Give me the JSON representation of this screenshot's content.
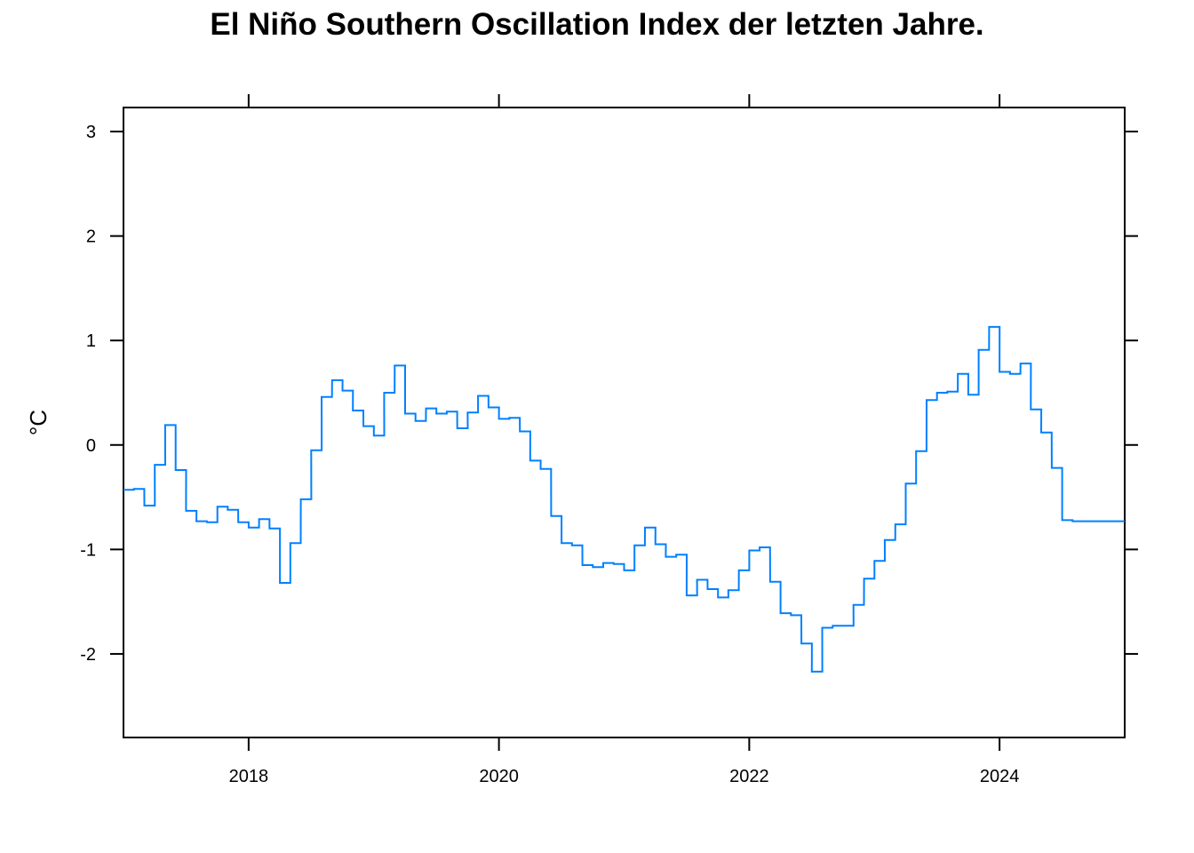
{
  "chart_data": {
    "type": "line",
    "step": true,
    "title": "El Niño Southern Oscillation Index der letzten Jahre.",
    "xlabel": "",
    "ylabel": "°C",
    "xlim": [
      2017.0,
      2025.0
    ],
    "ylim": [
      -2.8,
      3.23
    ],
    "x_ticks": [
      2018,
      2020,
      2022,
      2024
    ],
    "y_ticks": [
      3,
      2,
      1,
      0,
      -1,
      -2
    ],
    "grid": false,
    "line_color": "#0080ff",
    "series": [
      {
        "x": [
          2017.0,
          2017.083,
          2017.167,
          2017.25,
          2017.333,
          2017.417,
          2017.5,
          2017.583,
          2017.667,
          2017.75,
          2017.833,
          2017.917,
          2018.0,
          2018.083,
          2018.167,
          2018.25,
          2018.333,
          2018.417,
          2018.5,
          2018.583,
          2018.667,
          2018.75,
          2018.833,
          2018.917,
          2019.0,
          2019.083,
          2019.167,
          2019.25,
          2019.333,
          2019.417,
          2019.5,
          2019.583,
          2019.667,
          2019.75,
          2019.833,
          2019.917,
          2020.0,
          2020.083,
          2020.167,
          2020.25,
          2020.333,
          2020.417,
          2020.5,
          2020.583,
          2020.667,
          2020.75,
          2020.833,
          2020.917,
          2021.0,
          2021.083,
          2021.167,
          2021.25,
          2021.333,
          2021.417,
          2021.5,
          2021.583,
          2021.667,
          2021.75,
          2021.833,
          2021.917,
          2022.0,
          2022.083,
          2022.167,
          2022.25,
          2022.333,
          2022.417,
          2022.5,
          2022.583,
          2022.667,
          2022.75,
          2022.833,
          2022.917,
          2023.0,
          2023.083,
          2023.167,
          2023.25,
          2023.333,
          2023.417,
          2023.5,
          2023.583,
          2023.667,
          2023.75,
          2023.833,
          2023.917,
          2024.0,
          2024.083,
          2024.167,
          2024.25,
          2024.333,
          2024.417,
          2024.5,
          2024.583,
          2024.667,
          2024.75,
          2024.833,
          2024.917
        ],
        "values": [
          -0.43,
          -0.42,
          -0.58,
          -0.19,
          0.19,
          -0.24,
          -0.63,
          -0.73,
          -0.74,
          -0.59,
          -0.62,
          -0.74,
          -0.79,
          -0.71,
          -0.8,
          -1.32,
          -0.94,
          -0.52,
          -0.05,
          0.46,
          0.62,
          0.52,
          0.33,
          0.18,
          0.09,
          0.5,
          0.76,
          0.3,
          0.23,
          0.35,
          0.3,
          0.32,
          0.16,
          0.31,
          0.47,
          0.36,
          0.25,
          0.26,
          0.13,
          -0.15,
          -0.23,
          -0.68,
          -0.94,
          -0.96,
          -1.15,
          -1.17,
          -1.13,
          -1.14,
          -1.2,
          -0.96,
          -0.79,
          -0.95,
          -1.07,
          -1.05,
          -1.44,
          -1.29,
          -1.38,
          -1.46,
          -1.39,
          -1.2,
          -1.01,
          -0.98,
          -1.31,
          -1.61,
          -1.63,
          -1.9,
          -2.17,
          -1.75,
          -1.73,
          -1.73,
          -1.53,
          -1.28,
          -1.11,
          -0.91,
          -0.76,
          -0.37,
          -0.06,
          0.43,
          0.5,
          0.51,
          0.68,
          0.48,
          0.91,
          1.13,
          0.7,
          0.68,
          0.78,
          0.34,
          0.12,
          -0.22,
          -0.72,
          -0.73,
          -0.73,
          -0.73,
          -0.73,
          -0.73
        ]
      }
    ]
  }
}
